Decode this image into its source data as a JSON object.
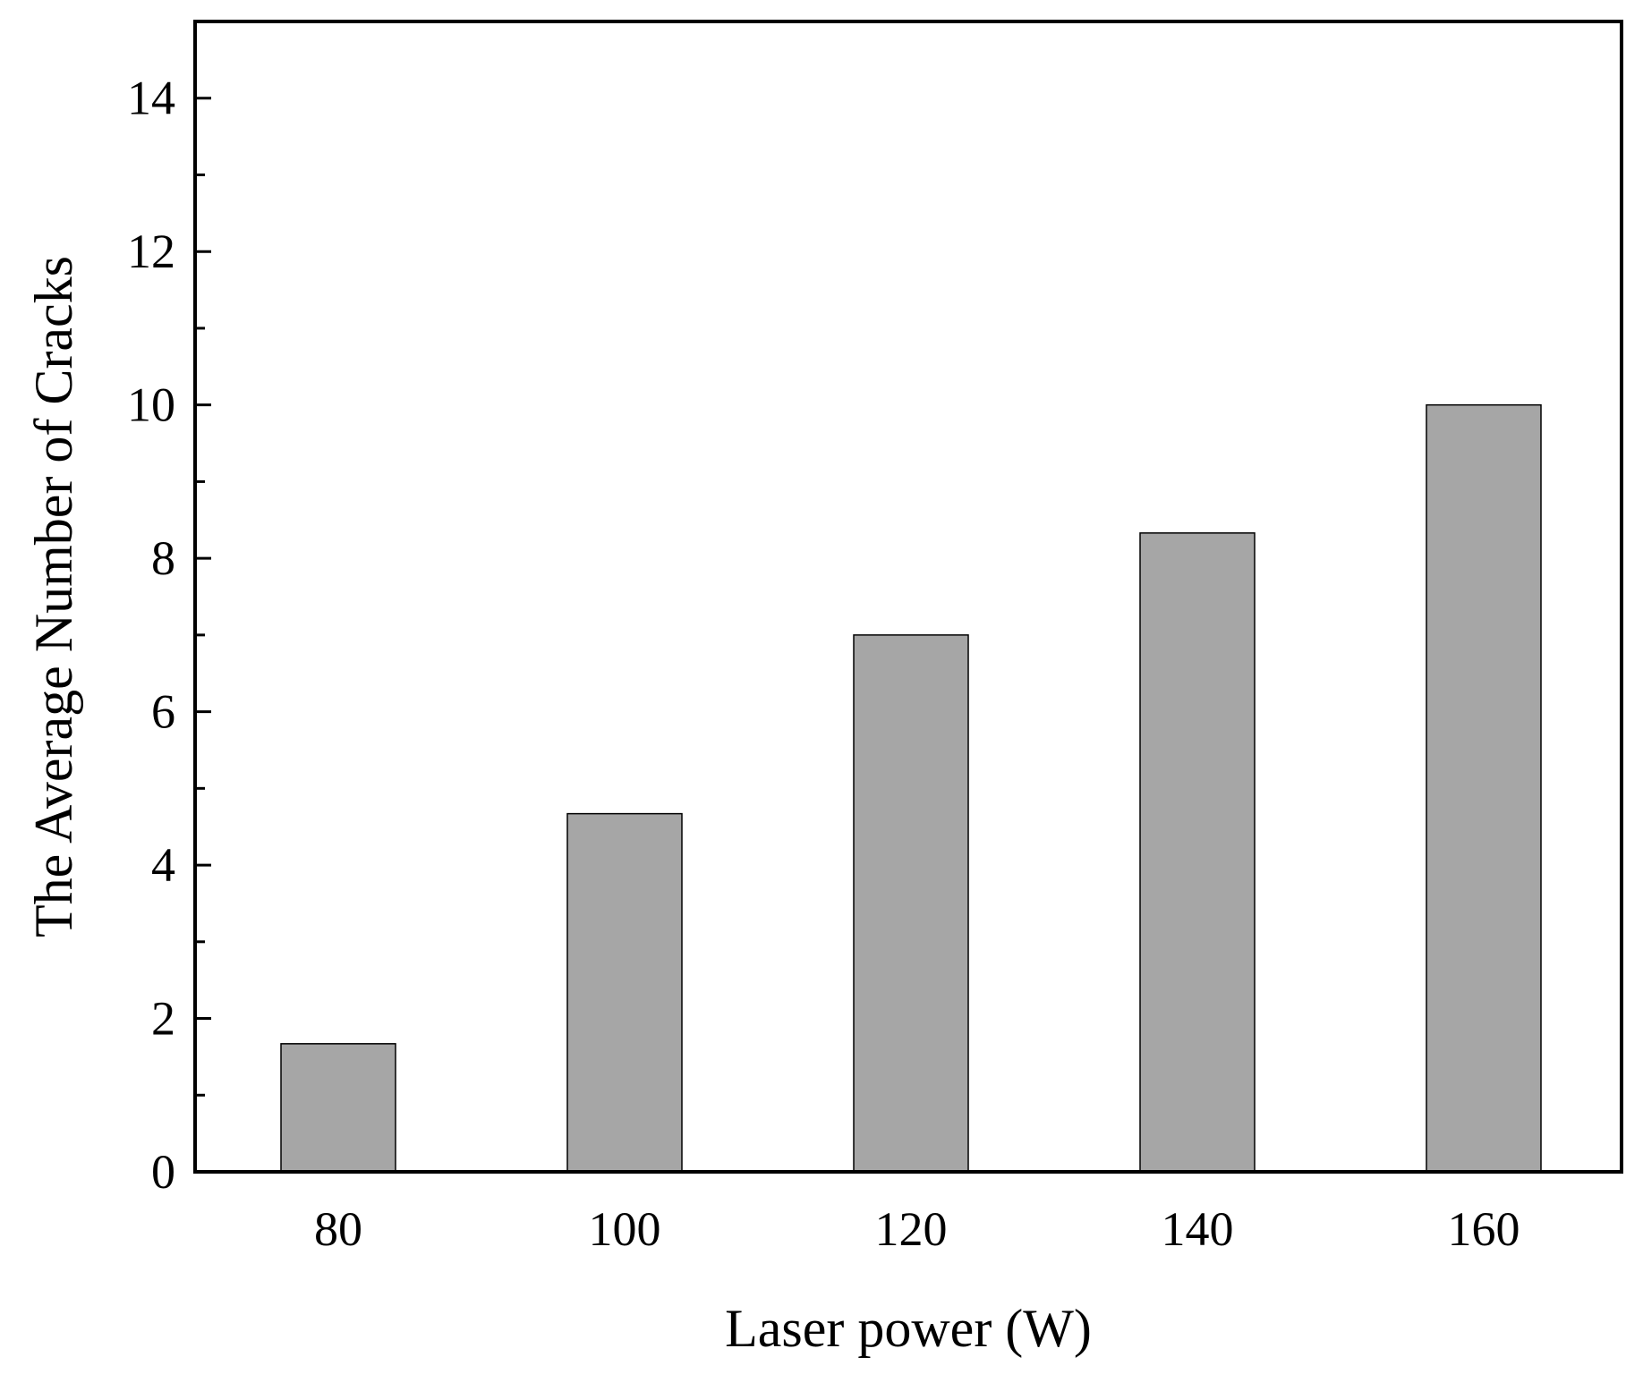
{
  "chart_data": {
    "type": "bar",
    "categories": [
      "80",
      "100",
      "120",
      "140",
      "160"
    ],
    "values": [
      1.67,
      4.67,
      7.0,
      8.33,
      10.0
    ],
    "title": "",
    "xlabel": "Laser power (W)",
    "ylabel": "The Average Number of Cracks",
    "ylim": [
      0,
      15
    ],
    "yticks": [
      "0",
      "2",
      "4",
      "6",
      "8",
      "10",
      "12",
      "14"
    ],
    "ytick_values": [
      0,
      2,
      4,
      6,
      8,
      10,
      12,
      14
    ],
    "grid": false,
    "legend": "none",
    "bar_color": "#a6a6a6"
  }
}
